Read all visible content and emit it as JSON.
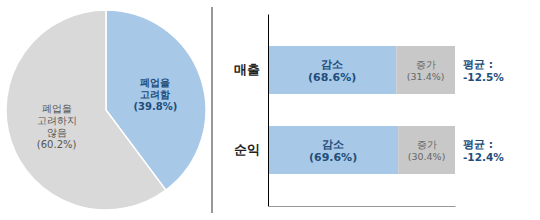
{
  "chart_data": [
    {
      "type": "pie",
      "values": [
        39.8,
        60.2
      ],
      "colors": [
        "#a8c8e8",
        "#d9d9d9"
      ],
      "data_labels": true,
      "value_labels": [
        "폐업을\n고려함\n(39.8%)",
        "폐업을\n고려하지\n않음\n(60.2%)"
      ]
    },
    {
      "type": "bar",
      "orientation": "horizontal",
      "stacked": true,
      "categories": [
        "매출",
        "순익"
      ],
      "series": [
        {
          "color": "#a8c8e8",
          "values": [
            68.6,
            69.6
          ],
          "value_labels": [
            "감소\n(68.6%)",
            "감소\n(69.6%)"
          ]
        },
        {
          "color": "#c8c8c8",
          "values": [
            31.4,
            30.4
          ],
          "value_labels": [
            "증가\n(31.4%)",
            "증가\n(30.4%)"
          ]
        }
      ],
      "data_labels": true,
      "annotations": [
        "평균 :\n-12.5%",
        "평균 :\n-12.4%"
      ],
      "xlim": [
        0,
        100
      ],
      "tick_labels": "y"
    }
  ]
}
